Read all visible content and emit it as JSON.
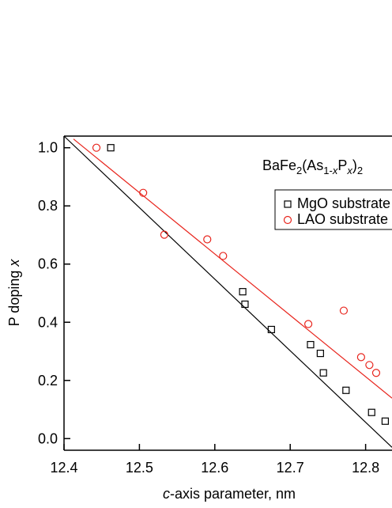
{
  "chart_data": {
    "type": "scatter",
    "annotation": [
      "BaFe",
      "2",
      "(As",
      "1-",
      "x",
      "P",
      "x",
      ")",
      "2"
    ],
    "x_label": [
      "c",
      "-axis parameter, nm"
    ],
    "y_label": [
      "P doping ",
      "x"
    ],
    "xlim": [
      12.4,
      12.835
    ],
    "ylim": [
      -0.04,
      1.04
    ],
    "xticks": [
      {
        "value": 12.4,
        "label": "12.4"
      },
      12.5,
      12.6,
      12.7,
      12.8
    ],
    "yticks": [
      {
        "value": 0,
        "label": "0.0"
      },
      0.2,
      0.4,
      0.6,
      0.8,
      {
        "value": 1,
        "label": "1.0"
      }
    ],
    "series": [
      {
        "name": "MgO substrate",
        "color": "#000000",
        "marker": "square",
        "x": [
          12.462,
          12.637,
          12.64,
          12.675,
          12.727,
          12.74,
          12.744,
          12.774,
          12.808,
          12.826
        ],
        "values": [
          1.0,
          0.505,
          0.462,
          0.375,
          0.323,
          0.293,
          0.226,
          0.166,
          0.09,
          0.06
        ],
        "fit_x": [
          12.4,
          12.835
        ],
        "fit_values": [
          1.04,
          -0.03
        ]
      },
      {
        "name": "LAO substrate",
        "color": "#e8241c",
        "marker": "circle",
        "x": [
          12.443,
          12.505,
          12.533,
          12.59,
          12.611,
          12.724,
          12.771,
          12.794,
          12.805,
          12.814
        ],
        "values": [
          1.0,
          0.845,
          0.701,
          0.685,
          0.628,
          0.394,
          0.44,
          0.28,
          0.253,
          0.226
        ],
        "fit_x": [
          12.4126,
          12.835
        ],
        "fit_values": [
          1.03,
          0.139
        ]
      }
    ]
  }
}
